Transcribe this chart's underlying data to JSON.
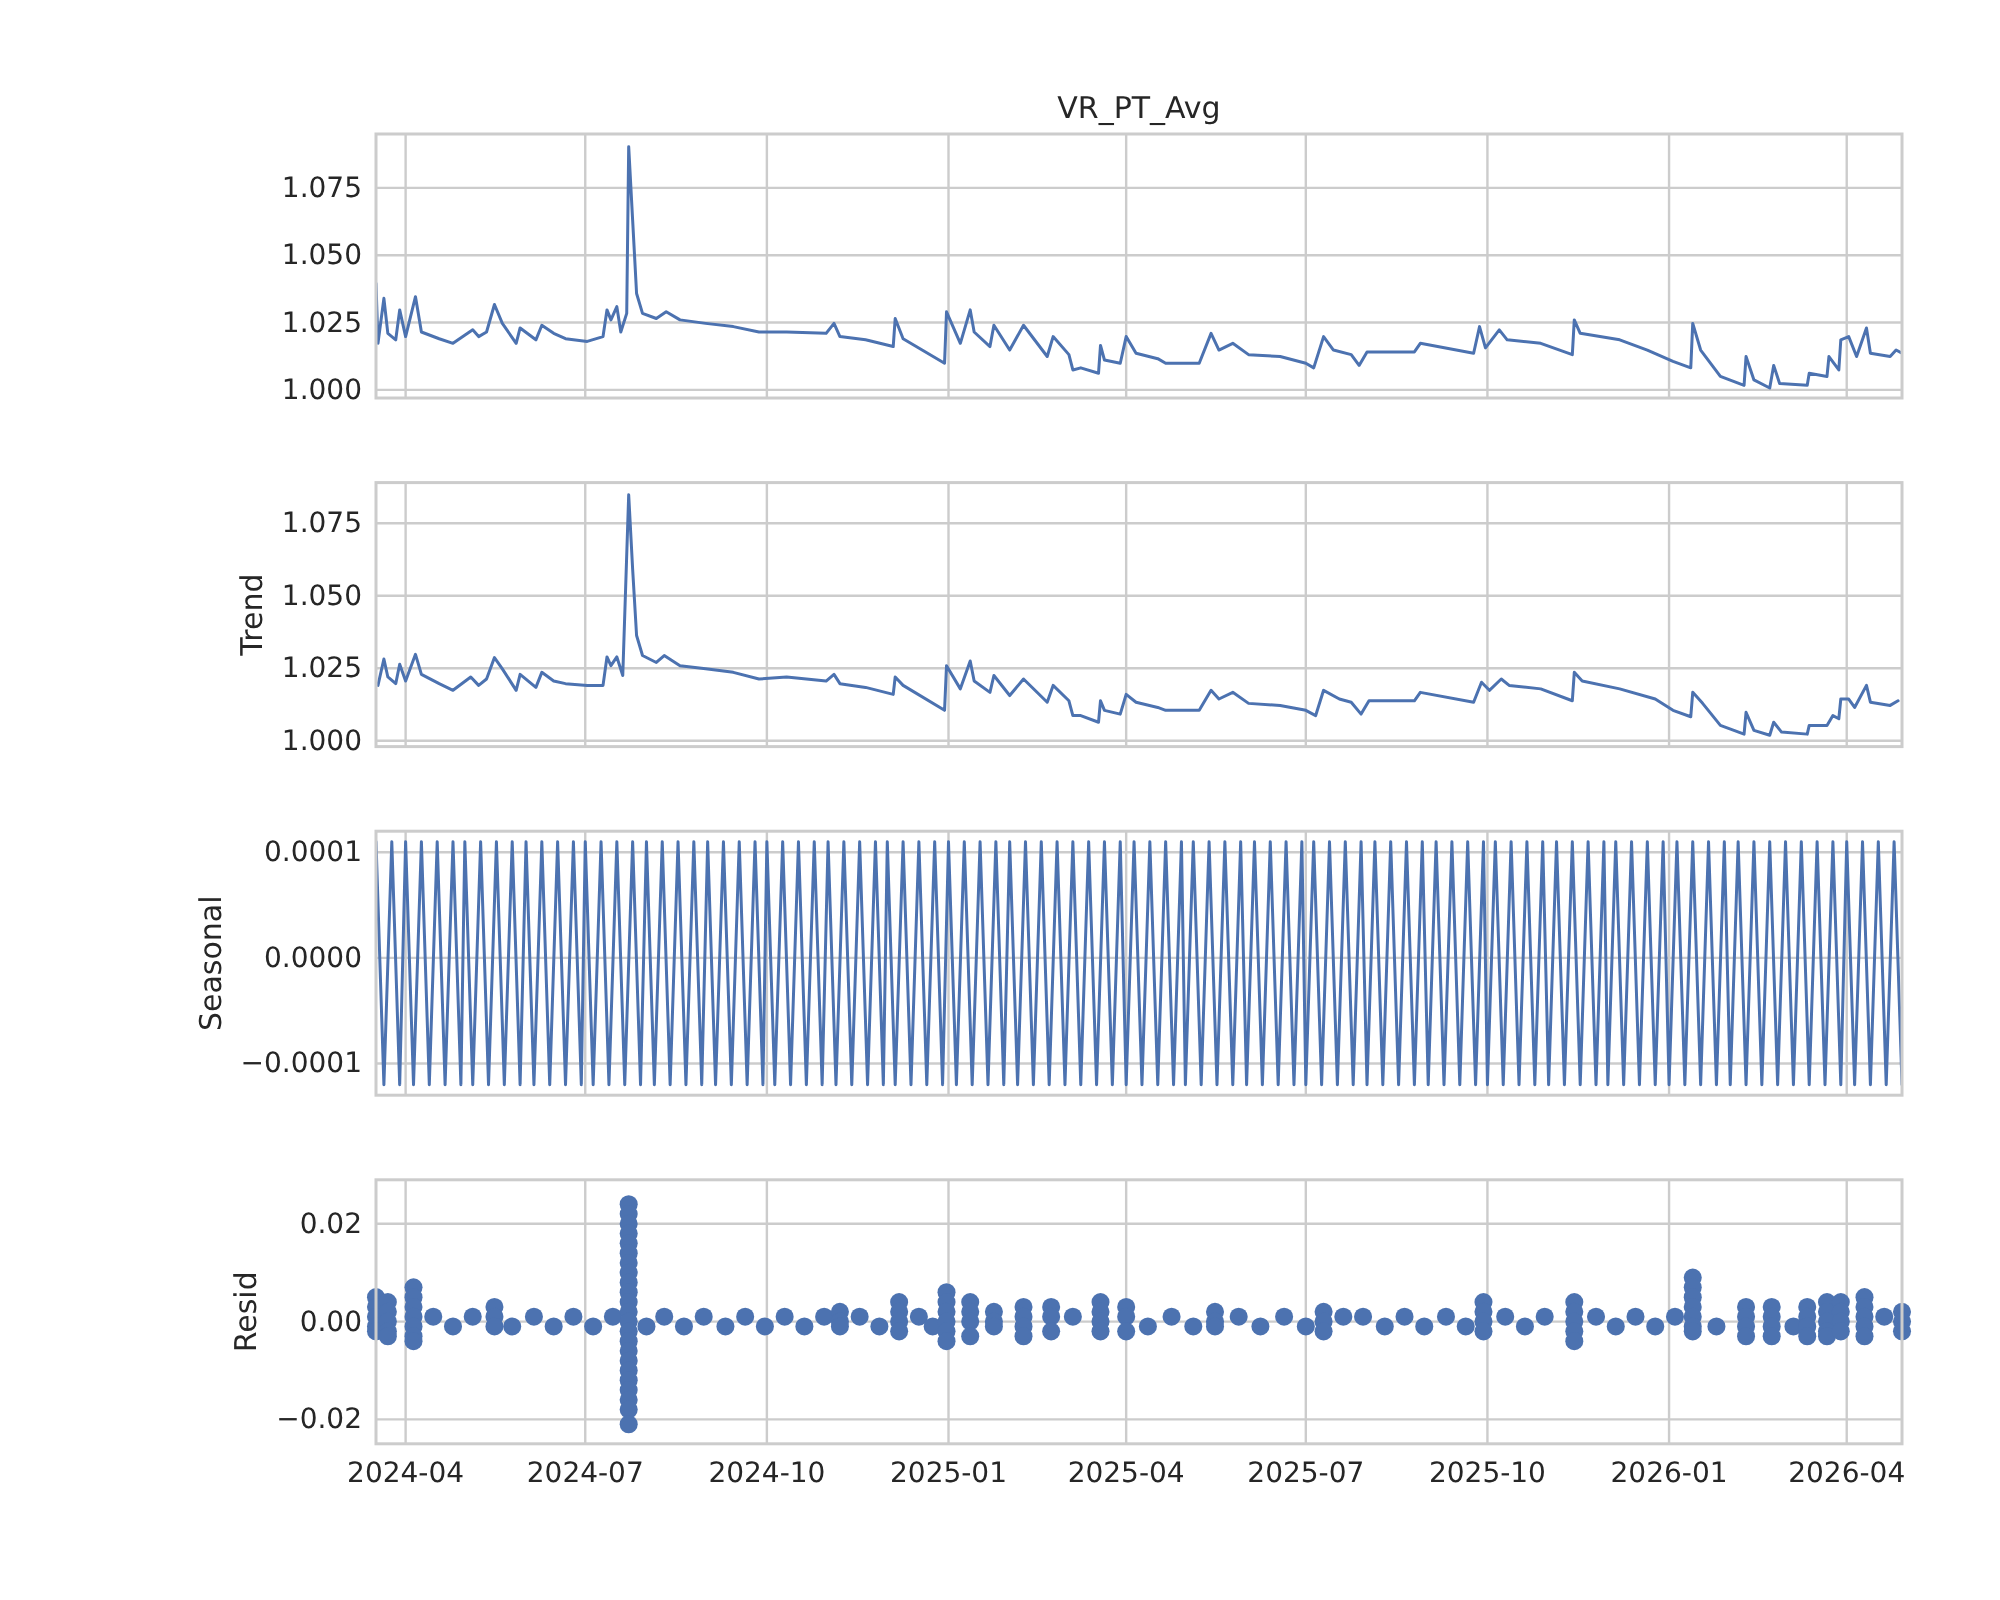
{
  "chart_data": [
    {
      "type": "line",
      "title": "VR_PT_Avg",
      "color": "#4c72b0",
      "grid": true,
      "tick_labels": "y",
      "xlim": [
        "2024-03-17",
        "2026-04-29"
      ],
      "xticks": [
        "2024-04",
        "2024-07",
        "2024-10",
        "2025-01",
        "2025-04",
        "2025-07",
        "2025-10",
        "2026-01",
        "2026-04"
      ],
      "ylim": [
        0.997,
        1.095
      ],
      "yticks": [
        {
          "value": 1,
          "label": "1.000"
        },
        {
          "value": 1.025,
          "label": "1.025"
        },
        {
          "value": 1.05,
          "label": "1.050"
        },
        {
          "value": 1.075,
          "label": "1.075"
        }
      ],
      "x": [
        "2024-03-17",
        "2024-03-18",
        "2024-03-21",
        "2024-03-23",
        "2024-03-27",
        "2024-03-29",
        "2024-04-01",
        "2024-04-06",
        "2024-04-09",
        "2024-04-18",
        "2024-04-25",
        "2024-05-05",
        "2024-05-08",
        "2024-05-12",
        "2024-05-16",
        "2024-05-20",
        "2024-05-27",
        "2024-05-29",
        "2024-06-06",
        "2024-06-09",
        "2024-06-15",
        "2024-06-21",
        "2024-07-02",
        "2024-07-10",
        "2024-07-12",
        "2024-07-14",
        "2024-07-17",
        "2024-07-19",
        "2024-07-22",
        "2024-07-23",
        "2024-07-25",
        "2024-07-27",
        "2024-07-30",
        "2024-08-06",
        "2024-08-11",
        "2024-08-18",
        "2024-08-31",
        "2024-09-14",
        "2024-09-27",
        "2024-10-11",
        "2024-10-31",
        "2024-11-04",
        "2024-11-07",
        "2024-11-20",
        "2024-12-04",
        "2024-12-05",
        "2024-12-09",
        "2024-12-30",
        "2024-12-31",
        "2025-01-07",
        "2025-01-12",
        "2025-01-14",
        "2025-01-22",
        "2025-01-24",
        "2025-02-01",
        "2025-02-08",
        "2025-02-20",
        "2025-02-23",
        "2025-03-03",
        "2025-03-05",
        "2025-03-09",
        "2025-03-18",
        "2025-03-19",
        "2025-03-21",
        "2025-03-29",
        "2025-04-01",
        "2025-04-06",
        "2025-04-17",
        "2025-04-21",
        "2025-05-08",
        "2025-05-14",
        "2025-05-18",
        "2025-05-25",
        "2025-06-02",
        "2025-06-18",
        "2025-07-01",
        "2025-07-05",
        "2025-07-10",
        "2025-07-15",
        "2025-07-24",
        "2025-07-28",
        "2025-08-01",
        "2025-08-25",
        "2025-08-28",
        "2025-09-24",
        "2025-09-27",
        "2025-09-30",
        "2025-10-07",
        "2025-10-11",
        "2025-10-28",
        "2025-11-13",
        "2025-11-14",
        "2025-11-17",
        "2025-12-07",
        "2025-12-21",
        "2026-01-03",
        "2026-01-12",
        "2026-01-13",
        "2026-01-17",
        "2026-01-27",
        "2026-02-08",
        "2026-02-09",
        "2026-02-13",
        "2026-02-21",
        "2026-02-23",
        "2026-02-26",
        "2026-03-12",
        "2026-03-13",
        "2026-03-22",
        "2026-03-23",
        "2026-03-28",
        "2026-03-29",
        "2026-04-02",
        "2026-04-06",
        "2026-04-11",
        "2026-04-13",
        "2026-04-23",
        "2026-04-26",
        "2026-04-29"
      ],
      "values": [
        1.0395,
        1.0173,
        1.034,
        1.021,
        1.0186,
        1.0297,
        1.0198,
        1.0346,
        1.0215,
        1.019,
        1.0173,
        1.0223,
        1.0198,
        1.0215,
        1.0317,
        1.0247,
        1.0173,
        1.023,
        1.0186,
        1.024,
        1.021,
        1.019,
        1.018,
        1.0198,
        1.0297,
        1.026,
        1.0309,
        1.0215,
        1.0284,
        1.0903,
        1.063,
        1.0358,
        1.0284,
        1.0265,
        1.029,
        1.026,
        1.0247,
        1.0235,
        1.0215,
        1.0215,
        1.021,
        1.0247,
        1.0198,
        1.0186,
        1.0161,
        1.0265,
        1.019,
        1.0099,
        1.029,
        1.0173,
        1.0297,
        1.0215,
        1.0161,
        1.024,
        1.0148,
        1.024,
        1.0124,
        1.0198,
        1.0131,
        1.0074,
        1.0082,
        1.0062,
        1.0165,
        1.0111,
        1.0099,
        1.0198,
        1.0136,
        1.0116,
        1.0099,
        1.0099,
        1.021,
        1.0148,
        1.0173,
        1.0131,
        1.0124,
        1.0099,
        1.0082,
        1.0198,
        1.0148,
        1.0131,
        1.0091,
        1.0141,
        1.0141,
        1.0173,
        1.0136,
        1.0235,
        1.0156,
        1.0223,
        1.0186,
        1.0173,
        1.0131,
        1.026,
        1.021,
        1.0186,
        1.0148,
        1.0106,
        1.0082,
        1.0247,
        1.0148,
        1.005,
        1.0017,
        1.0124,
        1.0037,
        1.0007,
        1.0091,
        1.0024,
        1.0017,
        1.0062,
        1.005,
        1.0124,
        1.0074,
        1.0186,
        1.0198,
        1.0124,
        1.023,
        1.0136,
        1.0124,
        1.0148,
        1.0136
      ]
    },
    {
      "type": "line",
      "ylabel": "Trend",
      "color": "#4c72b0",
      "grid": true,
      "tick_labels": "y",
      "xlim": [
        "2024-03-17",
        "2026-04-29"
      ],
      "xticks": [
        "2024-04",
        "2024-07",
        "2024-10",
        "2025-01",
        "2025-04",
        "2025-07",
        "2025-10",
        "2026-01",
        "2026-04"
      ],
      "ylim": [
        0.998,
        1.089
      ],
      "yticks": [
        {
          "value": 1,
          "label": "1.000"
        },
        {
          "value": 1.025,
          "label": "1.025"
        },
        {
          "value": 1.05,
          "label": "1.050"
        },
        {
          "value": 1.075,
          "label": "1.075"
        }
      ],
      "x": [
        "2024-03-18",
        "2024-03-21",
        "2024-03-23",
        "2024-03-27",
        "2024-03-29",
        "2024-04-01",
        "2024-04-06",
        "2024-04-09",
        "2024-04-18",
        "2024-04-25",
        "2024-05-04",
        "2024-05-08",
        "2024-05-12",
        "2024-05-16",
        "2024-05-20",
        "2024-05-27",
        "2024-05-29",
        "2024-06-06",
        "2024-06-09",
        "2024-06-15",
        "2024-06-21",
        "2024-07-02",
        "2024-07-10",
        "2024-07-12",
        "2024-07-14",
        "2024-07-17",
        "2024-07-20",
        "2024-07-23",
        "2024-07-25",
        "2024-07-27",
        "2024-07-30",
        "2024-08-06",
        "2024-08-10",
        "2024-08-18",
        "2024-08-31",
        "2024-09-14",
        "2024-09-27",
        "2024-10-11",
        "2024-10-31",
        "2024-11-04",
        "2024-11-07",
        "2024-11-20",
        "2024-12-04",
        "2024-12-05",
        "2024-12-09",
        "2024-12-30",
        "2024-12-31",
        "2025-01-07",
        "2025-01-12",
        "2025-01-14",
        "2025-01-22",
        "2025-01-24",
        "2025-02-01",
        "2025-02-08",
        "2025-02-20",
        "2025-02-23",
        "2025-03-03",
        "2025-03-05",
        "2025-03-09",
        "2025-03-18",
        "2025-03-19",
        "2025-03-21",
        "2025-03-29",
        "2025-04-01",
        "2025-04-06",
        "2025-04-17",
        "2025-04-21",
        "2025-05-08",
        "2025-05-14",
        "2025-05-18",
        "2025-05-25",
        "2025-06-02",
        "2025-06-18",
        "2025-07-01",
        "2025-07-06",
        "2025-07-10",
        "2025-07-18",
        "2025-07-24",
        "2025-07-29",
        "2025-08-02",
        "2025-08-25",
        "2025-08-28",
        "2025-09-24",
        "2025-09-28",
        "2025-10-02",
        "2025-10-08",
        "2025-10-12",
        "2025-10-28",
        "2025-11-13",
        "2025-11-14",
        "2025-11-18",
        "2025-12-07",
        "2025-12-25",
        "2026-01-03",
        "2026-01-12",
        "2026-01-13",
        "2026-01-18",
        "2026-01-27",
        "2026-02-08",
        "2026-02-09",
        "2026-02-13",
        "2026-02-21",
        "2026-02-23",
        "2026-02-27",
        "2026-03-12",
        "2026-03-13",
        "2026-03-22",
        "2026-03-25",
        "2026-03-28",
        "2026-03-29",
        "2026-04-02",
        "2026-04-05",
        "2026-04-11",
        "2026-04-13",
        "2026-04-23",
        "2026-04-27"
      ],
      "values": [
        1.0191,
        1.0282,
        1.022,
        1.0197,
        1.0264,
        1.0206,
        1.0298,
        1.0229,
        1.0197,
        1.0174,
        1.022,
        1.0191,
        1.0213,
        1.0287,
        1.0248,
        1.0174,
        1.0229,
        1.0184,
        1.0236,
        1.0206,
        1.0197,
        1.0191,
        1.0191,
        1.0289,
        1.0259,
        1.0289,
        1.0225,
        1.0848,
        1.0592,
        1.0363,
        1.0294,
        1.027,
        1.0294,
        1.0259,
        1.0248,
        1.0236,
        1.0213,
        1.022,
        1.0206,
        1.0229,
        1.0197,
        1.0184,
        1.016,
        1.022,
        1.0191,
        1.0105,
        1.0259,
        1.0179,
        1.0275,
        1.0206,
        1.0167,
        1.0225,
        1.0156,
        1.0213,
        1.0133,
        1.0191,
        1.0138,
        1.0087,
        1.0087,
        1.0064,
        1.0138,
        1.0105,
        1.0092,
        1.016,
        1.0133,
        1.0115,
        1.0105,
        1.0105,
        1.0174,
        1.0144,
        1.0167,
        1.0129,
        1.0122,
        1.0105,
        1.0087,
        1.0174,
        1.0144,
        1.0133,
        1.0092,
        1.0138,
        1.0138,
        1.0167,
        1.0133,
        1.0202,
        1.0174,
        1.0213,
        1.0191,
        1.0179,
        1.0138,
        1.0236,
        1.0206,
        1.0179,
        1.0144,
        1.0105,
        1.0083,
        1.0167,
        1.0129,
        1.0053,
        1.0023,
        1.0098,
        1.0036,
        1.0019,
        1.0064,
        1.003,
        1.0023,
        1.0053,
        1.0053,
        1.0087,
        1.0076,
        1.0144,
        1.0144,
        1.0115,
        1.0191,
        1.0133,
        1.0122,
        1.0138
      ]
    },
    {
      "type": "line",
      "ylabel": "Seasonal",
      "color": "#4c72b0",
      "grid": true,
      "tick_labels": "y",
      "xlim": [
        "2024-03-17",
        "2026-04-29"
      ],
      "xticks": [
        "2024-04",
        "2024-07",
        "2024-10",
        "2025-01",
        "2025-04",
        "2025-07",
        "2025-10",
        "2026-01",
        "2026-04"
      ],
      "ylim": [
        -0.00013,
        0.00012
      ],
      "yticks": [
        {
          "value": -0.0001,
          "label": "−0.0001"
        },
        {
          "value": 0,
          "label": "0.0000"
        },
        {
          "value": 0.0001,
          "label": "0.0001"
        }
      ],
      "x": [
        "2024-03-17",
        "2024-03-21",
        "2024-03-25",
        "2024-03-29",
        "2024-04-01",
        "2024-04-05",
        "2024-04-09",
        "2024-04-13",
        "2024-04-17",
        "2024-04-21",
        "2024-04-25",
        "2024-04-29",
        "2024-05-01",
        "2024-05-05",
        "2024-05-09",
        "2024-05-13",
        "2024-05-17",
        "2024-05-21",
        "2024-05-25",
        "2024-05-29",
        "2024-06-01",
        "2024-06-05",
        "2024-06-09",
        "2024-06-13",
        "2024-06-17",
        "2024-06-21",
        "2024-06-25",
        "2024-06-29",
        "2024-07-01",
        "2024-07-05",
        "2024-07-09",
        "2024-07-13",
        "2024-07-17",
        "2024-07-21",
        "2024-07-25",
        "2024-07-29",
        "2024-08-01",
        "2024-08-05",
        "2024-08-09",
        "2024-08-13",
        "2024-08-17",
        "2024-08-21",
        "2024-08-25",
        "2024-08-29",
        "2024-09-01",
        "2024-09-05",
        "2024-09-09",
        "2024-09-13",
        "2024-09-17",
        "2024-09-21",
        "2024-09-25",
        "2024-09-29",
        "2024-10-01",
        "2024-10-05",
        "2024-10-09",
        "2024-10-13",
        "2024-10-17",
        "2024-10-21",
        "2024-10-25",
        "2024-10-29",
        "2024-11-01",
        "2024-11-05",
        "2024-11-09",
        "2024-11-13",
        "2024-11-17",
        "2024-11-21",
        "2024-11-25",
        "2024-11-29",
        "2024-12-01",
        "2024-12-05",
        "2024-12-09",
        "2024-12-13",
        "2024-12-17",
        "2024-12-21",
        "2024-12-25",
        "2024-12-29",
        "2025-01-01",
        "2025-01-05",
        "2025-01-09",
        "2025-01-13",
        "2025-01-17",
        "2025-01-21",
        "2025-01-25",
        "2025-01-29",
        "2025-02-01",
        "2025-02-05",
        "2025-02-09",
        "2025-02-13",
        "2025-02-17",
        "2025-02-21",
        "2025-02-25",
        "2025-03-01",
        "2025-03-05",
        "2025-03-09",
        "2025-03-13",
        "2025-03-17",
        "2025-03-21",
        "2025-03-25",
        "2025-03-29",
        "2025-04-01",
        "2025-04-05",
        "2025-04-09",
        "2025-04-13",
        "2025-04-17",
        "2025-04-21",
        "2025-04-25",
        "2025-04-29",
        "2025-05-01",
        "2025-05-05",
        "2025-05-09",
        "2025-05-13",
        "2025-05-17",
        "2025-05-21",
        "2025-05-25",
        "2025-05-29",
        "2025-06-01",
        "2025-06-05",
        "2025-06-09",
        "2025-06-13",
        "2025-06-17",
        "2025-06-21",
        "2025-06-25",
        "2025-06-29",
        "2025-07-01",
        "2025-07-05",
        "2025-07-09",
        "2025-07-13",
        "2025-07-17",
        "2025-07-21",
        "2025-07-25",
        "2025-07-29",
        "2025-08-01",
        "2025-08-05",
        "2025-08-09",
        "2025-08-13",
        "2025-08-17",
        "2025-08-21",
        "2025-08-25",
        "2025-08-29",
        "2025-09-01",
        "2025-09-05",
        "2025-09-09",
        "2025-09-13",
        "2025-09-17",
        "2025-09-21",
        "2025-09-25",
        "2025-09-29",
        "2025-10-01",
        "2025-10-05",
        "2025-10-09",
        "2025-10-13",
        "2025-10-17",
        "2025-10-21",
        "2025-10-25",
        "2025-10-29",
        "2025-11-01",
        "2025-11-05",
        "2025-11-09",
        "2025-11-13",
        "2025-11-17",
        "2025-11-21",
        "2025-11-25",
        "2025-11-29",
        "2025-12-01",
        "2025-12-05",
        "2025-12-09",
        "2025-12-13",
        "2025-12-17",
        "2025-12-21",
        "2025-12-25",
        "2025-12-29",
        "2026-01-01",
        "2026-01-05",
        "2026-01-09",
        "2026-01-13",
        "2026-01-17",
        "2026-01-21",
        "2026-01-25",
        "2026-01-29",
        "2026-02-01",
        "2026-02-05",
        "2026-02-09",
        "2026-02-13",
        "2026-02-17",
        "2026-02-21",
        "2026-02-25",
        "2026-03-01",
        "2026-03-05",
        "2026-03-09",
        "2026-03-13",
        "2026-03-17",
        "2026-03-21",
        "2026-03-25",
        "2026-03-29",
        "2026-04-01",
        "2026-04-05",
        "2026-04-09",
        "2026-04-13",
        "2026-04-17",
        "2026-04-21",
        "2026-04-25",
        "2026-04-29"
      ],
      "values": [
        0.00011,
        -0.00012,
        0.00011,
        -0.00012,
        0.00011,
        -0.00012,
        0.00011,
        -0.00012,
        0.00011,
        -0.00012,
        0.00011,
        -0.00012,
        0.00011,
        -0.00012,
        0.00011,
        -0.00012,
        0.00011,
        -0.00012,
        0.00011,
        -0.00012,
        0.00011,
        -0.00012,
        0.00011,
        -0.00012,
        0.00011,
        -0.00012,
        0.00011,
        -0.00012,
        0.00011,
        -0.00012,
        0.00011,
        -0.00012,
        0.00011,
        -0.00012,
        0.00011,
        -0.00012,
        0.00011,
        -0.00012,
        0.00011,
        -0.00012,
        0.00011,
        -0.00012,
        0.00011,
        -0.00012,
        0.00011,
        -0.00012,
        0.00011,
        -0.00012,
        0.00011,
        -0.00012,
        0.00011,
        -0.00012,
        0.00011,
        -0.00012,
        0.00011,
        -0.00012,
        0.00011,
        -0.00012,
        0.00011,
        -0.00012,
        0.00011,
        -0.00012,
        0.00011,
        -0.00012,
        0.00011,
        -0.00012,
        0.00011,
        -0.00012,
        0.00011,
        -0.00012,
        0.00011,
        -0.00012,
        0.00011,
        -0.00012,
        0.00011,
        -0.00012,
        0.00011,
        -0.00012,
        0.00011,
        -0.00012,
        0.00011,
        -0.00012,
        0.00011,
        -0.00012,
        0.00011,
        -0.00012,
        0.00011,
        -0.00012,
        0.00011,
        -0.00012,
        0.00011,
        -0.00012,
        0.00011,
        -0.00012,
        0.00011,
        -0.00012,
        0.00011,
        -0.00012,
        0.00011,
        -0.00012,
        0.00011,
        -0.00012,
        0.00011,
        -0.00012,
        0.00011,
        -0.00012,
        0.00011,
        -0.00012,
        0.00011,
        -0.00012,
        0.00011,
        -0.00012,
        0.00011,
        -0.00012,
        0.00011,
        -0.00012,
        0.00011,
        -0.00012,
        0.00011,
        -0.00012,
        0.00011,
        -0.00012,
        0.00011,
        -0.00012,
        0.00011,
        -0.00012,
        0.00011,
        -0.00012,
        0.00011,
        -0.00012,
        0.00011,
        -0.00012,
        0.00011,
        -0.00012,
        0.00011,
        -0.00012,
        0.00011,
        -0.00012,
        0.00011,
        -0.00012,
        0.00011,
        -0.00012,
        0.00011,
        -0.00012,
        0.00011,
        -0.00012,
        0.00011,
        -0.00012,
        0.00011,
        -0.00012,
        0.00011,
        -0.00012,
        0.00011,
        -0.00012,
        0.00011,
        -0.00012,
        0.00011,
        -0.00012,
        0.00011,
        -0.00012,
        0.00011,
        -0.00012,
        0.00011,
        -0.00012,
        0.00011,
        -0.00012,
        0.00011,
        -0.00012,
        0.00011,
        -0.00012,
        0.00011,
        -0.00012,
        0.00011,
        -0.00012,
        0.00011,
        -0.00012,
        0.00011,
        -0.00012,
        0.00011,
        -0.00012,
        0.00011,
        -0.00012,
        0.00011,
        -0.00012,
        0.00011,
        -0.00012,
        0.00011,
        -0.00012,
        0.00011,
        -0.00012,
        0.00011,
        -0.00012,
        0.00011,
        -0.00012,
        0.00011,
        -0.00012,
        0.00011,
        -0.00012,
        0.00011,
        -0.00012,
        0.00011,
        -0.00012
      ]
    },
    {
      "type": "scatter",
      "ylabel": "Resid",
      "color": "#4c72b0",
      "grid": true,
      "marker": "circle",
      "xlim": [
        "2024-03-17",
        "2026-04-29"
      ],
      "xticks": [
        "2024-04",
        "2024-07",
        "2024-10",
        "2025-01",
        "2025-04",
        "2025-07",
        "2025-10",
        "2026-01",
        "2026-04"
      ],
      "ylim": [
        -0.025,
        0.029
      ],
      "yticks": [
        {
          "value": -0.02,
          "label": "−0.02"
        },
        {
          "value": 0,
          "label": "0.00"
        },
        {
          "value": 0.02,
          "label": "0.02"
        }
      ],
      "x": [
        "2024-03-17",
        "2024-03-17",
        "2024-03-17",
        "2024-03-17",
        "2024-03-17",
        "2024-03-23",
        "2024-03-23",
        "2024-03-23",
        "2024-03-23",
        "2024-03-23",
        "2024-04-05",
        "2024-04-05",
        "2024-04-05",
        "2024-04-05",
        "2024-04-05",
        "2024-04-05",
        "2024-04-05",
        "2024-04-15",
        "2024-04-25",
        "2024-05-05",
        "2024-05-16",
        "2024-05-16",
        "2024-05-16",
        "2024-05-25",
        "2024-06-05",
        "2024-06-15",
        "2024-06-25",
        "2024-07-05",
        "2024-07-15",
        "2024-07-23",
        "2024-07-23",
        "2024-07-23",
        "2024-07-23",
        "2024-07-23",
        "2024-07-23",
        "2024-07-23",
        "2024-07-23",
        "2024-07-23",
        "2024-07-23",
        "2024-07-23",
        "2024-07-23",
        "2024-07-23",
        "2024-07-23",
        "2024-07-23",
        "2024-07-23",
        "2024-07-23",
        "2024-07-23",
        "2024-07-23",
        "2024-07-23",
        "2024-07-23",
        "2024-07-23",
        "2024-07-23",
        "2024-08-01",
        "2024-08-10",
        "2024-08-20",
        "2024-08-30",
        "2024-09-10",
        "2024-09-20",
        "2024-09-30",
        "2024-10-10",
        "2024-10-20",
        "2024-10-30",
        "2024-11-07",
        "2024-11-07",
        "2024-11-07",
        "2024-11-17",
        "2024-11-27",
        "2024-12-07",
        "2024-12-07",
        "2024-12-07",
        "2024-12-07",
        "2024-12-17",
        "2024-12-24",
        "2024-12-31",
        "2024-12-31",
        "2024-12-31",
        "2024-12-31",
        "2024-12-31",
        "2024-12-31",
        "2025-01-12",
        "2025-01-12",
        "2025-01-12",
        "2025-01-12",
        "2025-01-24",
        "2025-01-24",
        "2025-01-24",
        "2025-02-08",
        "2025-02-08",
        "2025-02-08",
        "2025-02-08",
        "2025-02-22",
        "2025-02-22",
        "2025-02-22",
        "2025-03-05",
        "2025-03-19",
        "2025-03-19",
        "2025-03-19",
        "2025-03-19",
        "2025-04-01",
        "2025-04-01",
        "2025-04-01",
        "2025-04-12",
        "2025-04-24",
        "2025-05-05",
        "2025-05-16",
        "2025-05-16",
        "2025-05-16",
        "2025-05-28",
        "2025-06-08",
        "2025-06-20",
        "2025-07-01",
        "2025-07-10",
        "2025-07-10",
        "2025-07-10",
        "2025-07-20",
        "2025-07-30",
        "2025-08-10",
        "2025-08-20",
        "2025-08-30",
        "2025-09-10",
        "2025-09-20",
        "2025-09-29",
        "2025-09-29",
        "2025-09-29",
        "2025-09-29",
        "2025-10-10",
        "2025-10-20",
        "2025-10-30",
        "2025-11-14",
        "2025-11-14",
        "2025-11-14",
        "2025-11-14",
        "2025-11-14",
        "2025-11-25",
        "2025-12-05",
        "2025-12-15",
        "2025-12-25",
        "2026-01-04",
        "2026-01-13",
        "2026-01-13",
        "2026-01-13",
        "2026-01-13",
        "2026-01-13",
        "2026-01-13",
        "2026-01-13",
        "2026-01-25",
        "2026-02-09",
        "2026-02-09",
        "2026-02-09",
        "2026-02-09",
        "2026-02-22",
        "2026-02-22",
        "2026-02-22",
        "2026-02-22",
        "2026-03-05",
        "2026-03-12",
        "2026-03-12",
        "2026-03-12",
        "2026-03-12",
        "2026-03-22",
        "2026-03-22",
        "2026-03-22",
        "2026-03-22",
        "2026-03-22",
        "2026-03-29",
        "2026-03-29",
        "2026-03-29",
        "2026-03-29",
        "2026-04-10",
        "2026-04-10",
        "2026-04-10",
        "2026-04-10",
        "2026-04-10",
        "2026-04-20",
        "2026-04-29",
        "2026-04-29",
        "2026-04-29"
      ],
      "values": [
        0.005,
        0.003,
        0.001,
        -0.001,
        -0.002,
        0.004,
        0.002,
        0,
        -0.002,
        -0.003,
        0.007,
        0.005,
        0.003,
        0.001,
        -0.001,
        -0.003,
        -0.004,
        0.001,
        -0.001,
        0.001,
        0.003,
        0.001,
        -0.001,
        -0.001,
        0.001,
        -0.001,
        0.001,
        -0.001,
        0.001,
        0.024,
        0.022,
        0.02,
        0.018,
        0.016,
        0.014,
        0.012,
        0.01,
        0.008,
        0.006,
        0.004,
        0.002,
        0,
        -0.002,
        -0.004,
        -0.006,
        -0.008,
        -0.01,
        -0.012,
        -0.014,
        -0.016,
        -0.018,
        -0.021,
        -0.001,
        0.001,
        -0.001,
        0.001,
        -0.001,
        0.001,
        -0.001,
        0.001,
        -0.001,
        0.001,
        0.002,
        0,
        -0.001,
        0.001,
        -0.001,
        0.004,
        0.002,
        0,
        -0.002,
        0.001,
        -0.001,
        0.006,
        0.004,
        0.002,
        0,
        -0.002,
        -0.004,
        0.004,
        0.002,
        0,
        -0.003,
        0.002,
        0,
        -0.001,
        0.003,
        0.001,
        -0.001,
        -0.003,
        0.003,
        0.001,
        -0.002,
        0.001,
        0.004,
        0.002,
        0,
        -0.002,
        0.003,
        0.001,
        -0.002,
        -0.001,
        0.001,
        -0.001,
        0.002,
        0,
        -0.001,
        0.001,
        -0.001,
        0.001,
        -0.001,
        0.002,
        0,
        -0.002,
        0.001,
        0.001,
        -0.001,
        0.001,
        -0.001,
        0.001,
        -0.001,
        0.004,
        0.002,
        0,
        -0.002,
        0.001,
        -0.001,
        0.001,
        0.004,
        0.002,
        0,
        -0.002,
        -0.004,
        0.001,
        -0.001,
        0.001,
        -0.001,
        0.001,
        0.009,
        0.007,
        0.005,
        0.003,
        0.001,
        -0.001,
        -0.002,
        -0.001,
        0.003,
        0.001,
        -0.001,
        -0.003,
        0.003,
        0.001,
        -0.001,
        -0.003,
        -0.001,
        0.003,
        0.001,
        -0.001,
        -0.003,
        0.004,
        0.002,
        0,
        -0.002,
        -0.003,
        0.004,
        0.002,
        0,
        -0.002,
        0.005,
        0.003,
        0.001,
        -0.001,
        -0.003,
        0.001,
        0.002,
        0,
        -0.002
      ]
    }
  ]
}
